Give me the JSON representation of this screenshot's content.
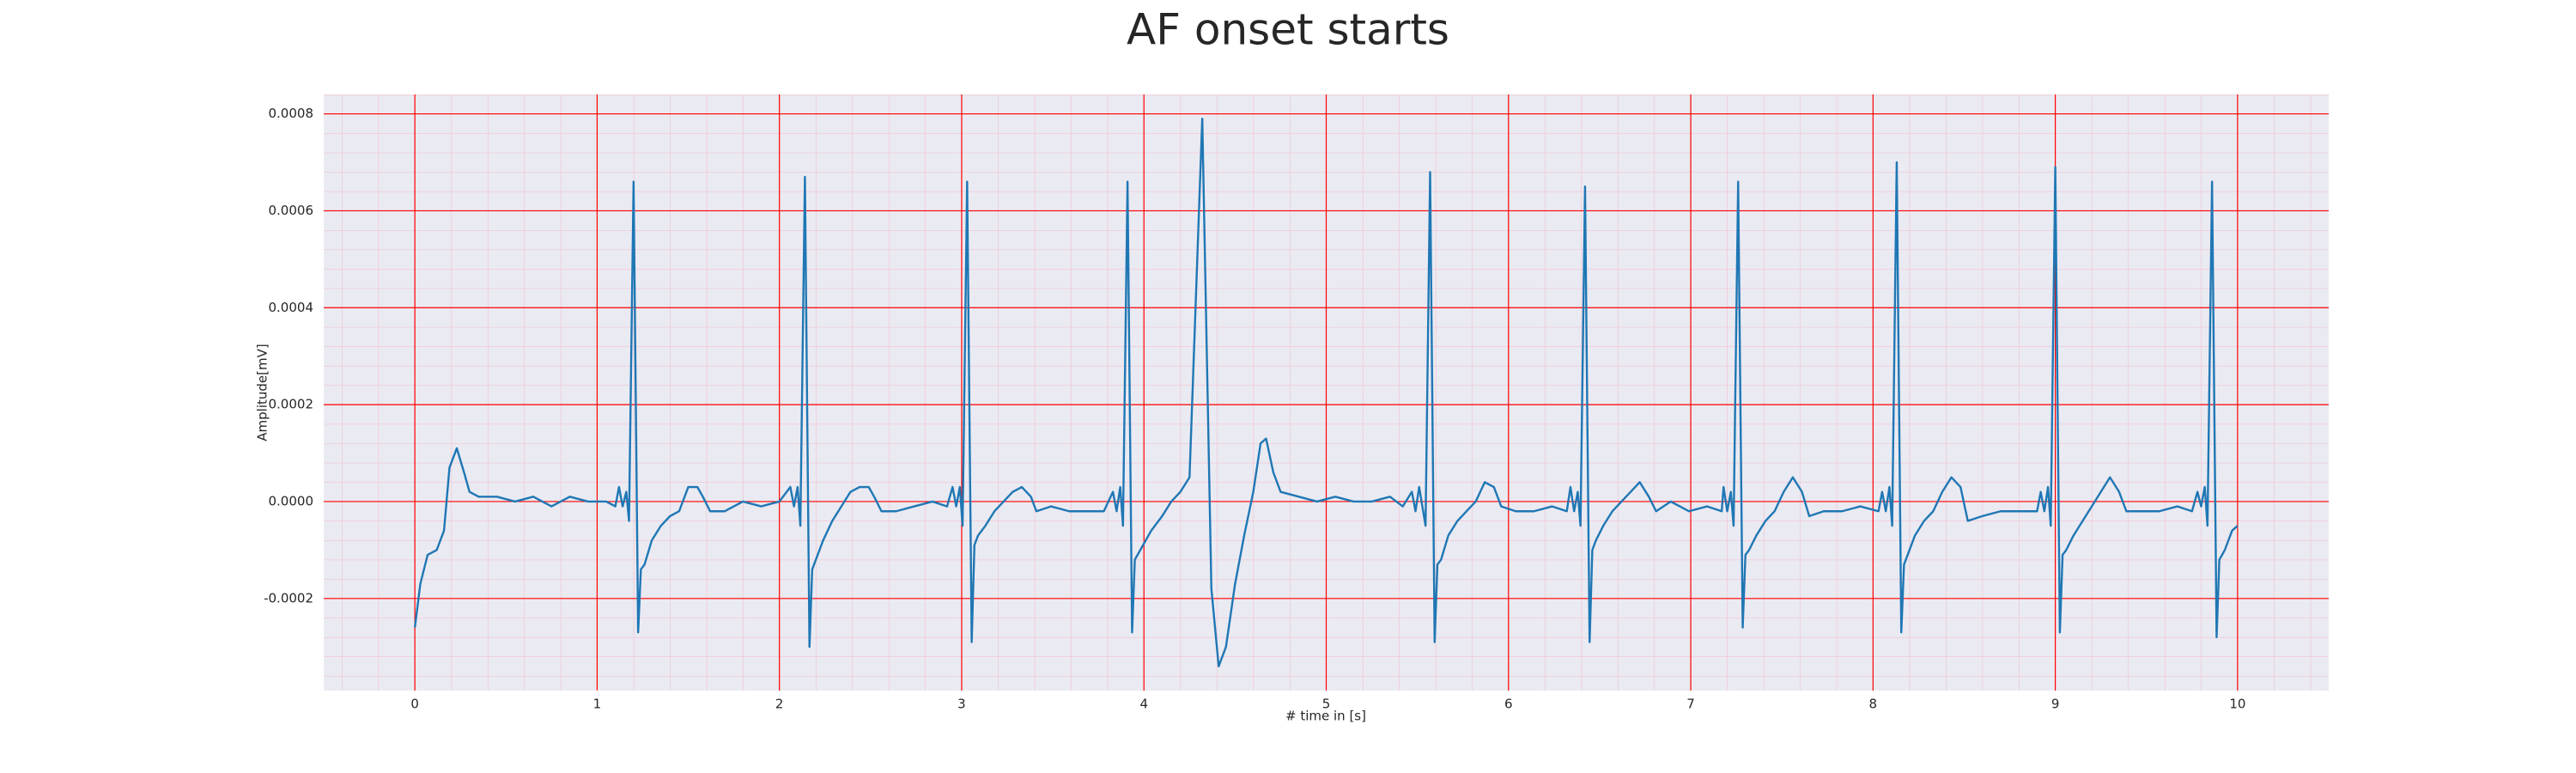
{
  "chart_data": {
    "type": "line",
    "title": "AF onset starts",
    "x_label": "# time in [s]",
    "y_label": "Amplitude[mV]",
    "color": "#1f77b4",
    "background": "#eaeaf2",
    "grid": true,
    "grid_color": "#ff0000",
    "minor_grid_color": "#f4b8c8",
    "xlim": [
      -0.5,
      10.5
    ],
    "ylim": [
      -0.00039,
      0.00084
    ],
    "xticks": [
      0,
      1,
      2,
      3,
      4,
      5,
      6,
      7,
      8,
      9,
      10
    ],
    "yticks": [
      -0.0002,
      {
        "value": 0,
        "label": "0.0000"
      },
      0.0002,
      0.0004,
      0.0006,
      0.0008
    ],
    "x": [
      0,
      0.03,
      0.07,
      0.12,
      0.16,
      0.19,
      0.23,
      0.27,
      0.3,
      0.35,
      0.45,
      0.55,
      0.65,
      0.75,
      0.85,
      0.95,
      1.05,
      1.1,
      1.12,
      1.14,
      1.16,
      1.175,
      1.2,
      1.225,
      1.24,
      1.26,
      1.3,
      1.35,
      1.4,
      1.45,
      1.5,
      1.55,
      1.58,
      1.62,
      1.7,
      1.8,
      1.9,
      2.0,
      2.06,
      2.08,
      2.1,
      2.115,
      2.14,
      2.165,
      2.18,
      2.2,
      2.24,
      2.29,
      2.34,
      2.39,
      2.44,
      2.49,
      2.52,
      2.56,
      2.64,
      2.74,
      2.84,
      2.92,
      2.95,
      2.97,
      2.99,
      3.005,
      3.03,
      3.055,
      3.07,
      3.09,
      3.13,
      3.18,
      3.23,
      3.28,
      3.33,
      3.38,
      3.41,
      3.49,
      3.59,
      3.69,
      3.78,
      3.83,
      3.85,
      3.87,
      3.885,
      3.91,
      3.935,
      3.95,
      3.98,
      4.04,
      4.1,
      4.15,
      4.2,
      4.25,
      4.32,
      4.37,
      4.41,
      4.45,
      4.5,
      4.55,
      4.6,
      4.64,
      4.67,
      4.71,
      4.75,
      4.85,
      4.95,
      5.05,
      5.15,
      5.25,
      5.35,
      5.42,
      5.47,
      5.49,
      5.51,
      5.545,
      5.57,
      5.595,
      5.61,
      5.63,
      5.67,
      5.72,
      5.77,
      5.82,
      5.87,
      5.92,
      5.96,
      6.04,
      6.14,
      6.24,
      6.32,
      6.34,
      6.36,
      6.38,
      6.395,
      6.42,
      6.445,
      6.46,
      6.48,
      6.52,
      6.57,
      6.62,
      6.67,
      6.72,
      6.77,
      6.81,
      6.89,
      6.99,
      7.09,
      7.17,
      7.18,
      7.2,
      7.22,
      7.235,
      7.26,
      7.285,
      7.3,
      7.32,
      7.36,
      7.41,
      7.46,
      7.51,
      7.56,
      7.61,
      7.65,
      7.73,
      7.83,
      7.93,
      8.03,
      8.05,
      8.07,
      8.09,
      8.105,
      8.13,
      8.155,
      8.17,
      8.19,
      8.23,
      8.28,
      8.33,
      8.38,
      8.43,
      8.48,
      8.52,
      8.6,
      8.7,
      8.8,
      8.9,
      8.92,
      8.94,
      8.96,
      8.975,
      9.0,
      9.025,
      9.04,
      9.06,
      9.1,
      9.15,
      9.2,
      9.25,
      9.3,
      9.35,
      9.39,
      9.47,
      9.57,
      9.67,
      9.75,
      9.78,
      9.8,
      9.82,
      9.835,
      9.86,
      9.885,
      9.9,
      9.93,
      9.97,
      10.0
    ],
    "values": [
      -0.00026,
      -0.00017,
      -0.00011,
      -0.0001,
      -6e-05,
      7e-05,
      0.00011,
      6e-05,
      2e-05,
      1e-05,
      1e-05,
      0.0,
      1e-05,
      -1e-05,
      1e-05,
      0.0,
      0.0,
      -1e-05,
      3e-05,
      -1e-05,
      2e-05,
      -4e-05,
      0.00066,
      -0.00027,
      -0.00014,
      -0.00013,
      -8e-05,
      -5e-05,
      -3e-05,
      -2e-05,
      3e-05,
      3e-05,
      1e-05,
      -2e-05,
      -2e-05,
      0.0,
      -1e-05,
      0.0,
      3e-05,
      -1e-05,
      3e-05,
      -5e-05,
      0.00067,
      -0.0003,
      -0.00014,
      -0.00012,
      -8e-05,
      -4e-05,
      -1e-05,
      2e-05,
      3e-05,
      3e-05,
      1e-05,
      -2e-05,
      -2e-05,
      -1e-05,
      0.0,
      -1e-05,
      3e-05,
      -1e-05,
      3e-05,
      -5e-05,
      0.00066,
      -0.00029,
      -9e-05,
      -7e-05,
      -5e-05,
      -2e-05,
      0.0,
      2e-05,
      3e-05,
      1e-05,
      -2e-05,
      -1e-05,
      -2e-05,
      -2e-05,
      -2e-05,
      2e-05,
      -2e-05,
      3e-05,
      -5e-05,
      0.00066,
      -0.00027,
      -0.00012,
      -0.0001,
      -6e-05,
      -3e-05,
      0.0,
      2e-05,
      5e-05,
      0.00079,
      -0.00018,
      -0.00034,
      -0.0003,
      -0.00017,
      -7e-05,
      2e-05,
      0.00012,
      0.00013,
      6e-05,
      2e-05,
      1e-05,
      0.0,
      1e-05,
      0.0,
      0.0,
      1e-05,
      -1e-05,
      2e-05,
      -2e-05,
      3e-05,
      -5e-05,
      0.00068,
      -0.00029,
      -0.00013,
      -0.00012,
      -7e-05,
      -4e-05,
      -2e-05,
      0.0,
      4e-05,
      3e-05,
      -1e-05,
      -2e-05,
      -2e-05,
      -1e-05,
      -2e-05,
      3e-05,
      -2e-05,
      2e-05,
      -5e-05,
      0.00065,
      -0.00029,
      -0.0001,
      -8e-05,
      -5e-05,
      -2e-05,
      0.0,
      2e-05,
      4e-05,
      1e-05,
      -2e-05,
      0.0,
      -2e-05,
      -1e-05,
      -2e-05,
      3e-05,
      -2e-05,
      2e-05,
      -5e-05,
      0.00066,
      -0.00026,
      -0.00011,
      -0.0001,
      -7e-05,
      -4e-05,
      -2e-05,
      2e-05,
      5e-05,
      2e-05,
      -3e-05,
      -2e-05,
      -2e-05,
      -1e-05,
      -2e-05,
      2e-05,
      -2e-05,
      3e-05,
      -5e-05,
      0.0007,
      -0.00027,
      -0.00013,
      -0.00011,
      -7e-05,
      -4e-05,
      -2e-05,
      2e-05,
      5e-05,
      3e-05,
      -4e-05,
      -3e-05,
      -2e-05,
      -2e-05,
      -2e-05,
      2e-05,
      -2e-05,
      3e-05,
      -5e-05,
      0.00069,
      -0.00027,
      -0.00011,
      -0.0001,
      -7e-05,
      -4e-05,
      -1e-05,
      2e-05,
      5e-05,
      2e-05,
      -2e-05,
      -2e-05,
      -2e-05,
      -1e-05,
      -2e-05,
      2e-05,
      -1e-05,
      3e-05,
      -5e-05,
      0.00066,
      -0.00028,
      -0.00012,
      -0.0001,
      -6e-05,
      -5e-05
    ]
  }
}
